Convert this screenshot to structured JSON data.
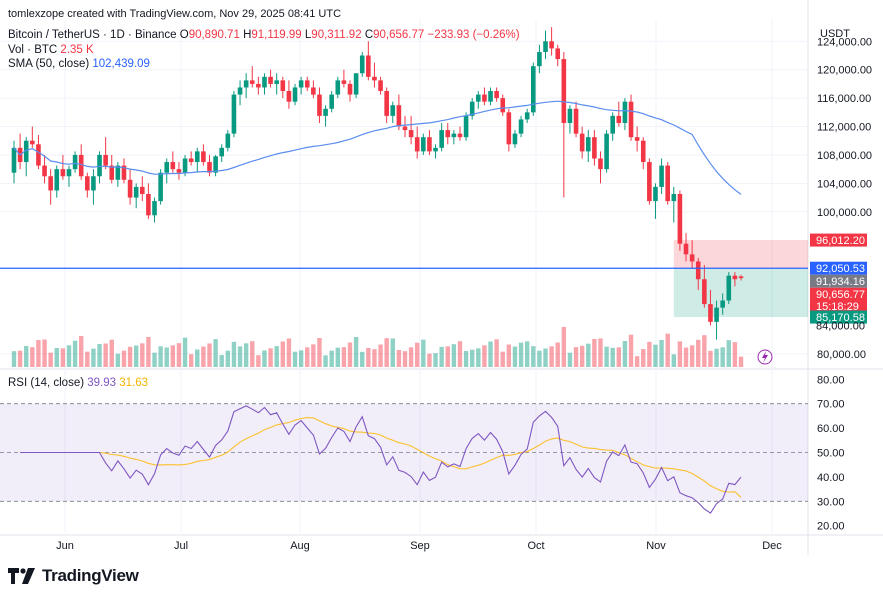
{
  "header": {
    "attribution": "tomlexzope created with TradingView.com, Nov 29, 2025 08:41 UTC",
    "symbol": "Bitcoin / TetherUS · 1D · Binance",
    "ohlc": {
      "o_label": "O",
      "o": "90,890.71",
      "h_label": "H",
      "h": "91,119.99",
      "l_label": "L",
      "l": "90,311.92",
      "c_label": "C",
      "c": "90,656.77",
      "change": "−233.93 (−0.26%)"
    },
    "vol_label": "Vol · BTC",
    "vol_value": "2.35 K",
    "sma_label": "SMA (50, close)",
    "sma_value": "102,439.09",
    "rsi_label": "RSI (14, close)",
    "rsi_value": "39.93",
    "rsi_ma_value": "31.63"
  },
  "price_axis": {
    "currency": "USDT",
    "ticks": [
      "124,000.00",
      "120,000.00",
      "116,000.00",
      "112,000.00",
      "108,000.00",
      "104,000.00",
      "100,000.00",
      "80,000.00"
    ],
    "badges": [
      {
        "value": "96,012.20",
        "color": "#f23645"
      },
      {
        "value": "92,050.53",
        "color": "#2962ff"
      },
      {
        "value": "91,934.16",
        "color": "#787b86"
      },
      {
        "value": "90,656.77",
        "color": "#f23645"
      },
      {
        "value": "15:18:29",
        "color": "#f23645"
      },
      {
        "value": "85,170.58",
        "color": "#089981"
      }
    ],
    "partial_tick": "84,000.00"
  },
  "rsi_axis": {
    "ticks": [
      "80.00",
      "70.00",
      "60.00",
      "50.00",
      "40.00",
      "30.00",
      "20.00"
    ]
  },
  "time_axis": [
    "Jun",
    "Jul",
    "Aug",
    "Sep",
    "Oct",
    "Nov",
    "Dec"
  ],
  "footer": {
    "brand": "TradingView"
  },
  "colors": {
    "up": "#089981",
    "down": "#f23645",
    "sma": "#5b8def",
    "rsi": "#7e57c2",
    "rsi_ma": "#fbc02d",
    "hline": "#2962ff"
  },
  "chart_data": {
    "type": "candlestick",
    "symbol": "BTCUSDT",
    "interval": "1D",
    "price_range": [
      78000,
      127000
    ],
    "rsi_range": [
      17,
      83
    ],
    "rsi_bands": [
      30,
      70,
      50
    ],
    "horizontal_line": 92050.53,
    "position": {
      "stop": 96012.2,
      "entry": 92050.53,
      "target": 85170.58
    },
    "candles": [
      [
        105500,
        110000,
        104000,
        109000
      ],
      [
        109000,
        111000,
        106000,
        107000
      ],
      [
        107000,
        110500,
        105000,
        110000
      ],
      [
        110000,
        112000,
        109000,
        109500
      ],
      [
        109500,
        110800,
        106000,
        106500
      ],
      [
        106500,
        108000,
        104000,
        105000
      ],
      [
        105000,
        106000,
        101000,
        103000
      ],
      [
        103000,
        106500,
        102000,
        106000
      ],
      [
        106000,
        108000,
        104500,
        105000
      ],
      [
        105000,
        106500,
        103500,
        106000
      ],
      [
        106000,
        108500,
        105500,
        108000
      ],
      [
        108000,
        109500,
        104500,
        105000
      ],
      [
        105000,
        105500,
        102000,
        103000
      ],
      [
        103000,
        106000,
        101000,
        105000
      ],
      [
        105000,
        108500,
        104000,
        108000
      ],
      [
        108000,
        110500,
        106000,
        106500
      ],
      [
        106500,
        108000,
        104000,
        104500
      ],
      [
        104500,
        107000,
        103500,
        106500
      ],
      [
        106500,
        107500,
        104000,
        104500
      ],
      [
        104500,
        106000,
        101000,
        102000
      ],
      [
        102000,
        104000,
        100500,
        103500
      ],
      [
        103500,
        105000,
        101500,
        102500
      ],
      [
        102500,
        104000,
        99000,
        99500
      ],
      [
        99500,
        102000,
        98500,
        101500
      ],
      [
        101500,
        106000,
        101000,
        105500
      ],
      [
        105500,
        107500,
        104000,
        107000
      ],
      [
        107000,
        108500,
        105500,
        106000
      ],
      [
        106000,
        107000,
        104500,
        105500
      ],
      [
        105500,
        108000,
        105000,
        107500
      ],
      [
        107500,
        108500,
        106500,
        107000
      ],
      [
        107000,
        109000,
        105500,
        108500
      ],
      [
        108500,
        109500,
        106500,
        107000
      ],
      [
        107000,
        108000,
        105000,
        105500
      ],
      [
        105500,
        108000,
        105000,
        107800
      ],
      [
        107800,
        109500,
        107000,
        109000
      ],
      [
        109000,
        111500,
        108500,
        111000
      ],
      [
        111000,
        117000,
        110500,
        116500
      ],
      [
        116500,
        118500,
        115000,
        117500
      ],
      [
        117500,
        119500,
        116000,
        118500
      ],
      [
        118500,
        120500,
        117500,
        118000
      ],
      [
        118000,
        119000,
        116500,
        117500
      ],
      [
        117500,
        119500,
        116500,
        119000
      ],
      [
        119000,
        120000,
        117500,
        118000
      ],
      [
        118000,
        119500,
        116500,
        118500
      ],
      [
        118500,
        119000,
        116000,
        117000
      ],
      [
        117000,
        118500,
        114500,
        115500
      ],
      [
        115500,
        118000,
        115000,
        117500
      ],
      [
        117500,
        119000,
        116500,
        118500
      ],
      [
        118500,
        119000,
        117000,
        117500
      ],
      [
        117500,
        118500,
        116000,
        116500
      ],
      [
        116500,
        117500,
        112500,
        113500
      ],
      [
        113500,
        115000,
        112000,
        114500
      ],
      [
        114500,
        117000,
        114000,
        116500
      ],
      [
        116500,
        119000,
        116000,
        118500
      ],
      [
        118500,
        120000,
        117500,
        118000
      ],
      [
        118000,
        118500,
        115500,
        116500
      ],
      [
        116500,
        119500,
        116000,
        119500
      ],
      [
        119500,
        122500,
        119000,
        122000
      ],
      [
        122000,
        124000,
        118500,
        119000
      ],
      [
        119000,
        121000,
        117500,
        118500
      ],
      [
        118500,
        119000,
        116500,
        117000
      ],
      [
        117000,
        117500,
        112500,
        113500
      ],
      [
        113500,
        115500,
        112500,
        115000
      ],
      [
        115000,
        116500,
        111500,
        112000
      ],
      [
        112000,
        113500,
        110500,
        111500
      ],
      [
        111500,
        113500,
        109500,
        110500
      ],
      [
        110500,
        112000,
        107500,
        108500
      ],
      [
        108500,
        111000,
        108000,
        110500
      ],
      [
        110500,
        111500,
        108000,
        108500
      ],
      [
        108500,
        109500,
        107500,
        109000
      ],
      [
        109000,
        112500,
        108500,
        111500
      ],
      [
        111500,
        112500,
        109500,
        110500
      ],
      [
        110500,
        111500,
        109500,
        111000
      ],
      [
        111000,
        112000,
        110000,
        110500
      ],
      [
        110500,
        114000,
        110000,
        113500
      ],
      [
        113500,
        116000,
        113000,
        115500
      ],
      [
        115500,
        117000,
        114500,
        116500
      ],
      [
        116500,
        117500,
        115000,
        115500
      ],
      [
        115500,
        117500,
        115000,
        117000
      ],
      [
        117000,
        117500,
        115500,
        116000
      ],
      [
        116000,
        116500,
        113500,
        114000
      ],
      [
        114000,
        114500,
        108500,
        109500
      ],
      [
        109500,
        111500,
        109000,
        111000
      ],
      [
        111000,
        113500,
        110500,
        113000
      ],
      [
        113000,
        114500,
        112500,
        114000
      ],
      [
        114000,
        121000,
        113500,
        120500
      ],
      [
        120500,
        123500,
        119500,
        122500
      ],
      [
        122500,
        125500,
        121500,
        124000
      ],
      [
        124000,
        126000,
        122000,
        123000
      ],
      [
        123000,
        123500,
        120500,
        121500
      ],
      [
        121500,
        122500,
        102000,
        112500
      ],
      [
        112500,
        115000,
        111000,
        114500
      ],
      [
        114500,
        115500,
        110500,
        111000
      ],
      [
        111000,
        112000,
        107500,
        108500
      ],
      [
        108500,
        111500,
        107000,
        110500
      ],
      [
        110500,
        111500,
        106500,
        107500
      ],
      [
        107500,
        108500,
        104000,
        106000
      ],
      [
        106000,
        111500,
        105500,
        111000
      ],
      [
        111000,
        114000,
        110000,
        113500
      ],
      [
        113500,
        115500,
        112000,
        112500
      ],
      [
        112500,
        116000,
        111500,
        115500
      ],
      [
        115500,
        116500,
        110000,
        110500
      ],
      [
        110500,
        112000,
        108500,
        110000
      ],
      [
        110000,
        110500,
        106000,
        107000
      ],
      [
        107000,
        107500,
        101000,
        101500
      ],
      [
        101500,
        104000,
        99000,
        103500
      ],
      [
        103500,
        107500,
        102500,
        106500
      ],
      [
        106500,
        107000,
        101000,
        101500
      ],
      [
        101500,
        103500,
        98500,
        102500
      ],
      [
        102500,
        103000,
        94500,
        95500
      ],
      [
        95500,
        97000,
        93000,
        94000
      ],
      [
        94000,
        96000,
        92000,
        93000
      ],
      [
        93000,
        93500,
        89000,
        90500
      ],
      [
        90500,
        92500,
        86500,
        87000
      ],
      [
        87000,
        89000,
        84000,
        84500
      ],
      [
        84500,
        87500,
        82000,
        86500
      ],
      [
        86500,
        88500,
        85500,
        87500
      ],
      [
        87500,
        91500,
        87000,
        91000
      ],
      [
        91000,
        91500,
        89500,
        90500
      ],
      [
        90890.71,
        91119.99,
        90311.92,
        90656.77
      ]
    ],
    "sma50_last": 102439.09,
    "rsi_last": 39.93,
    "rsi_ma_last": 31.63
  }
}
